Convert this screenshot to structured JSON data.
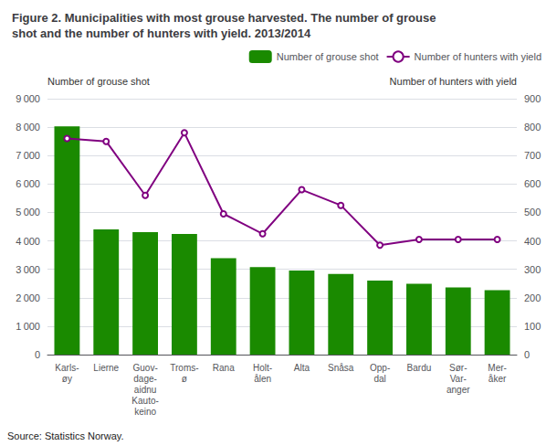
{
  "chart_data": {
    "type": "bar",
    "title": "Figure 2. Municipalities with most grouse harvested. The number of grouse\nshot and the number of hunters with yield. 2013/2014",
    "ylabel": "Number of grouse shot",
    "y2label": "Number of hunters with yield",
    "annotations": [
      "Source: Statistics Norway."
    ],
    "categories": [
      "Karls-\nøy",
      "Lierne",
      "Guov-\ndage-\naidnu\nKauto-\nkeino",
      "Troms-\nø",
      "Rana",
      "Holt-\nålen",
      "Alta",
      "Snåsa",
      "Opp-\ndal",
      "Bardu",
      "Sør-\nVar-\nanger",
      "Mer-\nåker"
    ],
    "series": [
      {
        "name": "Number of grouse shot",
        "type": "bar",
        "color": "#1a8a00",
        "values": [
          8030,
          4400,
          4310,
          4240,
          3390,
          3080,
          2960,
          2840,
          2600,
          2490,
          2360,
          2270
        ]
      },
      {
        "name": "Number of hunters with yield",
        "type": "line",
        "color": "#800080",
        "axis": "y2",
        "values": [
          760,
          750,
          560,
          780,
          495,
          425,
          580,
          525,
          385,
          405,
          405,
          405
        ]
      }
    ],
    "ylim": [
      0,
      9000
    ],
    "yticks": [
      0,
      {
        "value": 1000,
        "label": "1 000"
      },
      {
        "value": 2000,
        "label": "2 000"
      },
      {
        "value": 3000,
        "label": "3 000"
      },
      {
        "value": 4000,
        "label": "4 000"
      },
      {
        "value": 5000,
        "label": "5 000"
      },
      {
        "value": 6000,
        "label": "6 000"
      },
      {
        "value": 7000,
        "label": "7 000"
      },
      {
        "value": 8000,
        "label": "8 000"
      },
      {
        "value": 9000,
        "label": "9 000"
      }
    ],
    "y2lim": [
      0,
      900
    ],
    "y2ticks": [
      0,
      100,
      200,
      300,
      400,
      500,
      600,
      700,
      800,
      900
    ],
    "grid": true,
    "legend": "upper right"
  }
}
